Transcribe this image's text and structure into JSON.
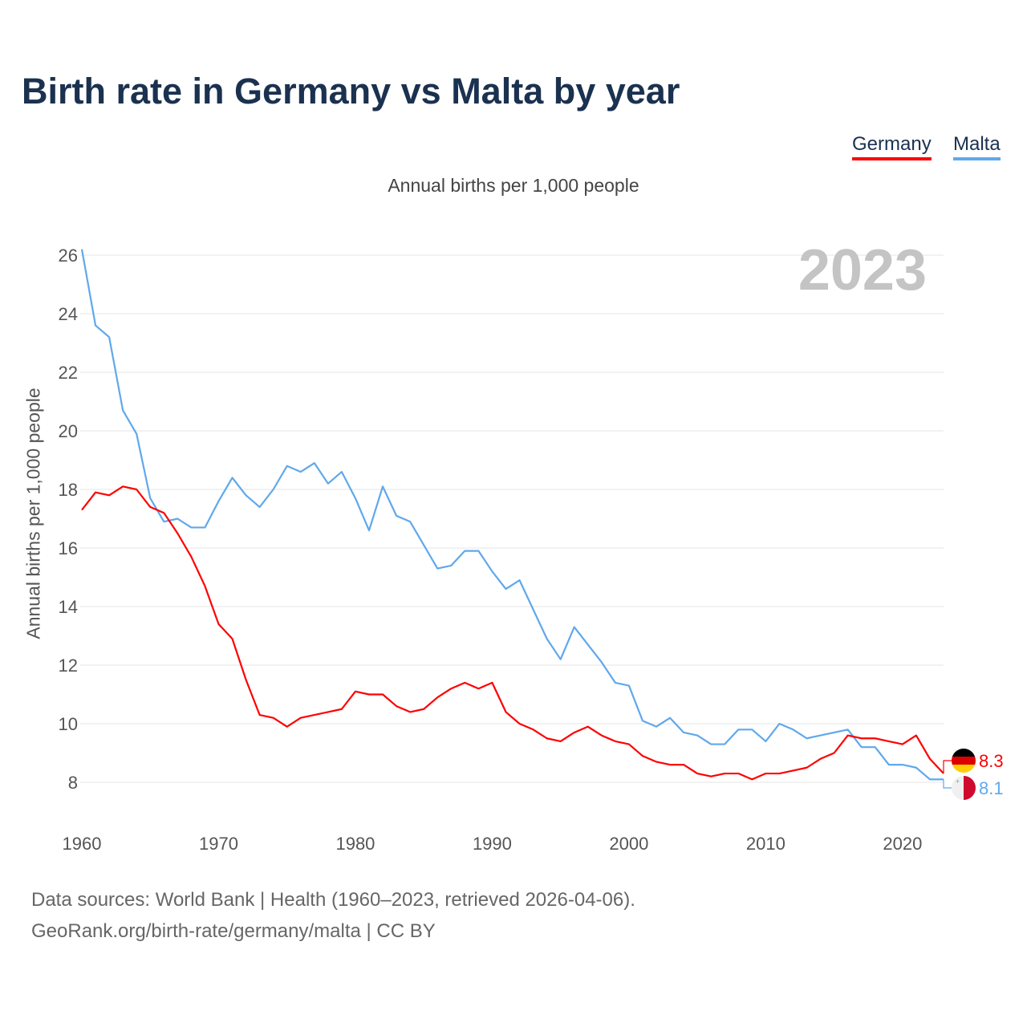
{
  "title": "Birth rate in Germany vs Malta by year",
  "subtitle": "Annual births per 1,000 people",
  "footer": {
    "line1": "Data sources: World Bank | Health (1960–2023, retrieved 2026-04-06).",
    "line2": "GeoRank.org/birth-rate/germany/malta | CC BY"
  },
  "chart_data": {
    "type": "line",
    "title": "Birth rate in Germany vs Malta by year",
    "ylabel": "Annual births per 1,000 people",
    "xlabel": "",
    "year_watermark": "2023",
    "xlim": [
      1960,
      2023
    ],
    "ylim": [
      7,
      26.3
    ],
    "yticks": [
      8,
      10,
      12,
      14,
      16,
      18,
      20,
      22,
      24,
      26
    ],
    "xticks": [
      1960,
      1970,
      1980,
      1990,
      2000,
      2010,
      2020
    ],
    "grid": true,
    "legend_position": "top-right",
    "x": [
      1960,
      1961,
      1962,
      1963,
      1964,
      1965,
      1966,
      1967,
      1968,
      1969,
      1970,
      1971,
      1972,
      1973,
      1974,
      1975,
      1976,
      1977,
      1978,
      1979,
      1980,
      1981,
      1982,
      1983,
      1984,
      1985,
      1986,
      1987,
      1988,
      1989,
      1990,
      1991,
      1992,
      1993,
      1994,
      1995,
      1996,
      1997,
      1998,
      1999,
      2000,
      2001,
      2002,
      2003,
      2004,
      2005,
      2006,
      2007,
      2008,
      2009,
      2010,
      2011,
      2012,
      2013,
      2014,
      2015,
      2016,
      2017,
      2018,
      2019,
      2020,
      2021,
      2022,
      2023
    ],
    "series": [
      {
        "name": "Germany",
        "color": "#ff0000",
        "end_label": "8.3",
        "flag": "germany-flag",
        "values": [
          17.3,
          17.9,
          17.8,
          18.1,
          18.0,
          17.4,
          17.2,
          16.5,
          15.7,
          14.7,
          13.4,
          12.9,
          11.5,
          10.3,
          10.2,
          9.9,
          10.2,
          10.3,
          10.4,
          10.5,
          11.1,
          11.0,
          11.0,
          10.6,
          10.4,
          10.5,
          10.9,
          11.2,
          11.4,
          11.2,
          11.4,
          10.4,
          10.0,
          9.8,
          9.5,
          9.4,
          9.7,
          9.9,
          9.6,
          9.4,
          9.3,
          8.9,
          8.7,
          8.6,
          8.6,
          8.3,
          8.2,
          8.3,
          8.3,
          8.1,
          8.3,
          8.3,
          8.4,
          8.5,
          8.8,
          9.0,
          9.6,
          9.5,
          9.5,
          9.4,
          9.3,
          9.6,
          8.8,
          8.3
        ]
      },
      {
        "name": "Malta",
        "color": "#5fa8ec",
        "end_label": "8.1",
        "flag": "malta-flag",
        "values": [
          26.2,
          23.6,
          23.2,
          20.7,
          19.9,
          17.7,
          16.9,
          17.0,
          16.7,
          16.7,
          17.6,
          18.4,
          17.8,
          17.4,
          18.0,
          18.8,
          18.6,
          18.9,
          18.2,
          18.6,
          17.7,
          16.6,
          18.1,
          17.1,
          16.9,
          16.1,
          15.3,
          15.4,
          15.9,
          15.9,
          15.2,
          14.6,
          14.9,
          13.9,
          12.9,
          12.2,
          13.3,
          12.7,
          12.1,
          11.4,
          11.3,
          10.1,
          9.9,
          10.2,
          9.7,
          9.6,
          9.3,
          9.3,
          9.8,
          9.8,
          9.4,
          10.0,
          9.8,
          9.5,
          9.6,
          9.7,
          9.8,
          9.2,
          9.2,
          8.6,
          8.6,
          8.5,
          8.1,
          8.1
        ]
      }
    ]
  }
}
